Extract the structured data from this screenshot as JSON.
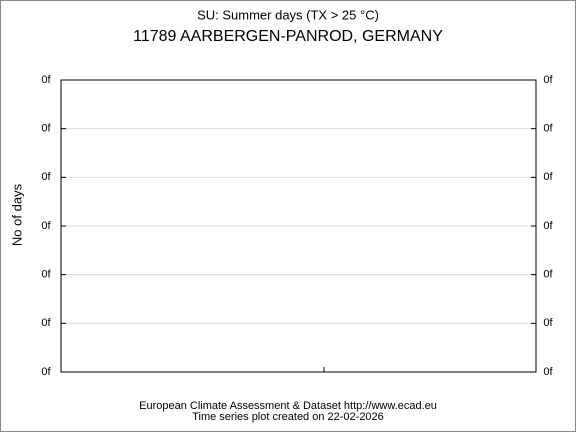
{
  "chart_data": {
    "type": "line",
    "title": "SU: Summer days (TX > 25 °C)",
    "subtitle": "11789 AARBERGEN-PANROD, GERMANY",
    "ylabel": "No of days",
    "footer": [
      "European Climate Assessment & Dataset  http://www.ecad.eu",
      "Time series plot created on 22-02-2026"
    ],
    "ylim": [
      0,
      6
    ],
    "yticks": [
      {
        "value": 0,
        "label": "0f"
      },
      {
        "value": 1,
        "label": "0f"
      },
      {
        "value": 2,
        "label": "0f"
      },
      {
        "value": 3,
        "label": "0f"
      },
      {
        "value": 4,
        "label": "0f"
      },
      {
        "value": 5,
        "label": "0f"
      },
      {
        "value": 6,
        "label": "0f"
      }
    ],
    "grid": true
  }
}
